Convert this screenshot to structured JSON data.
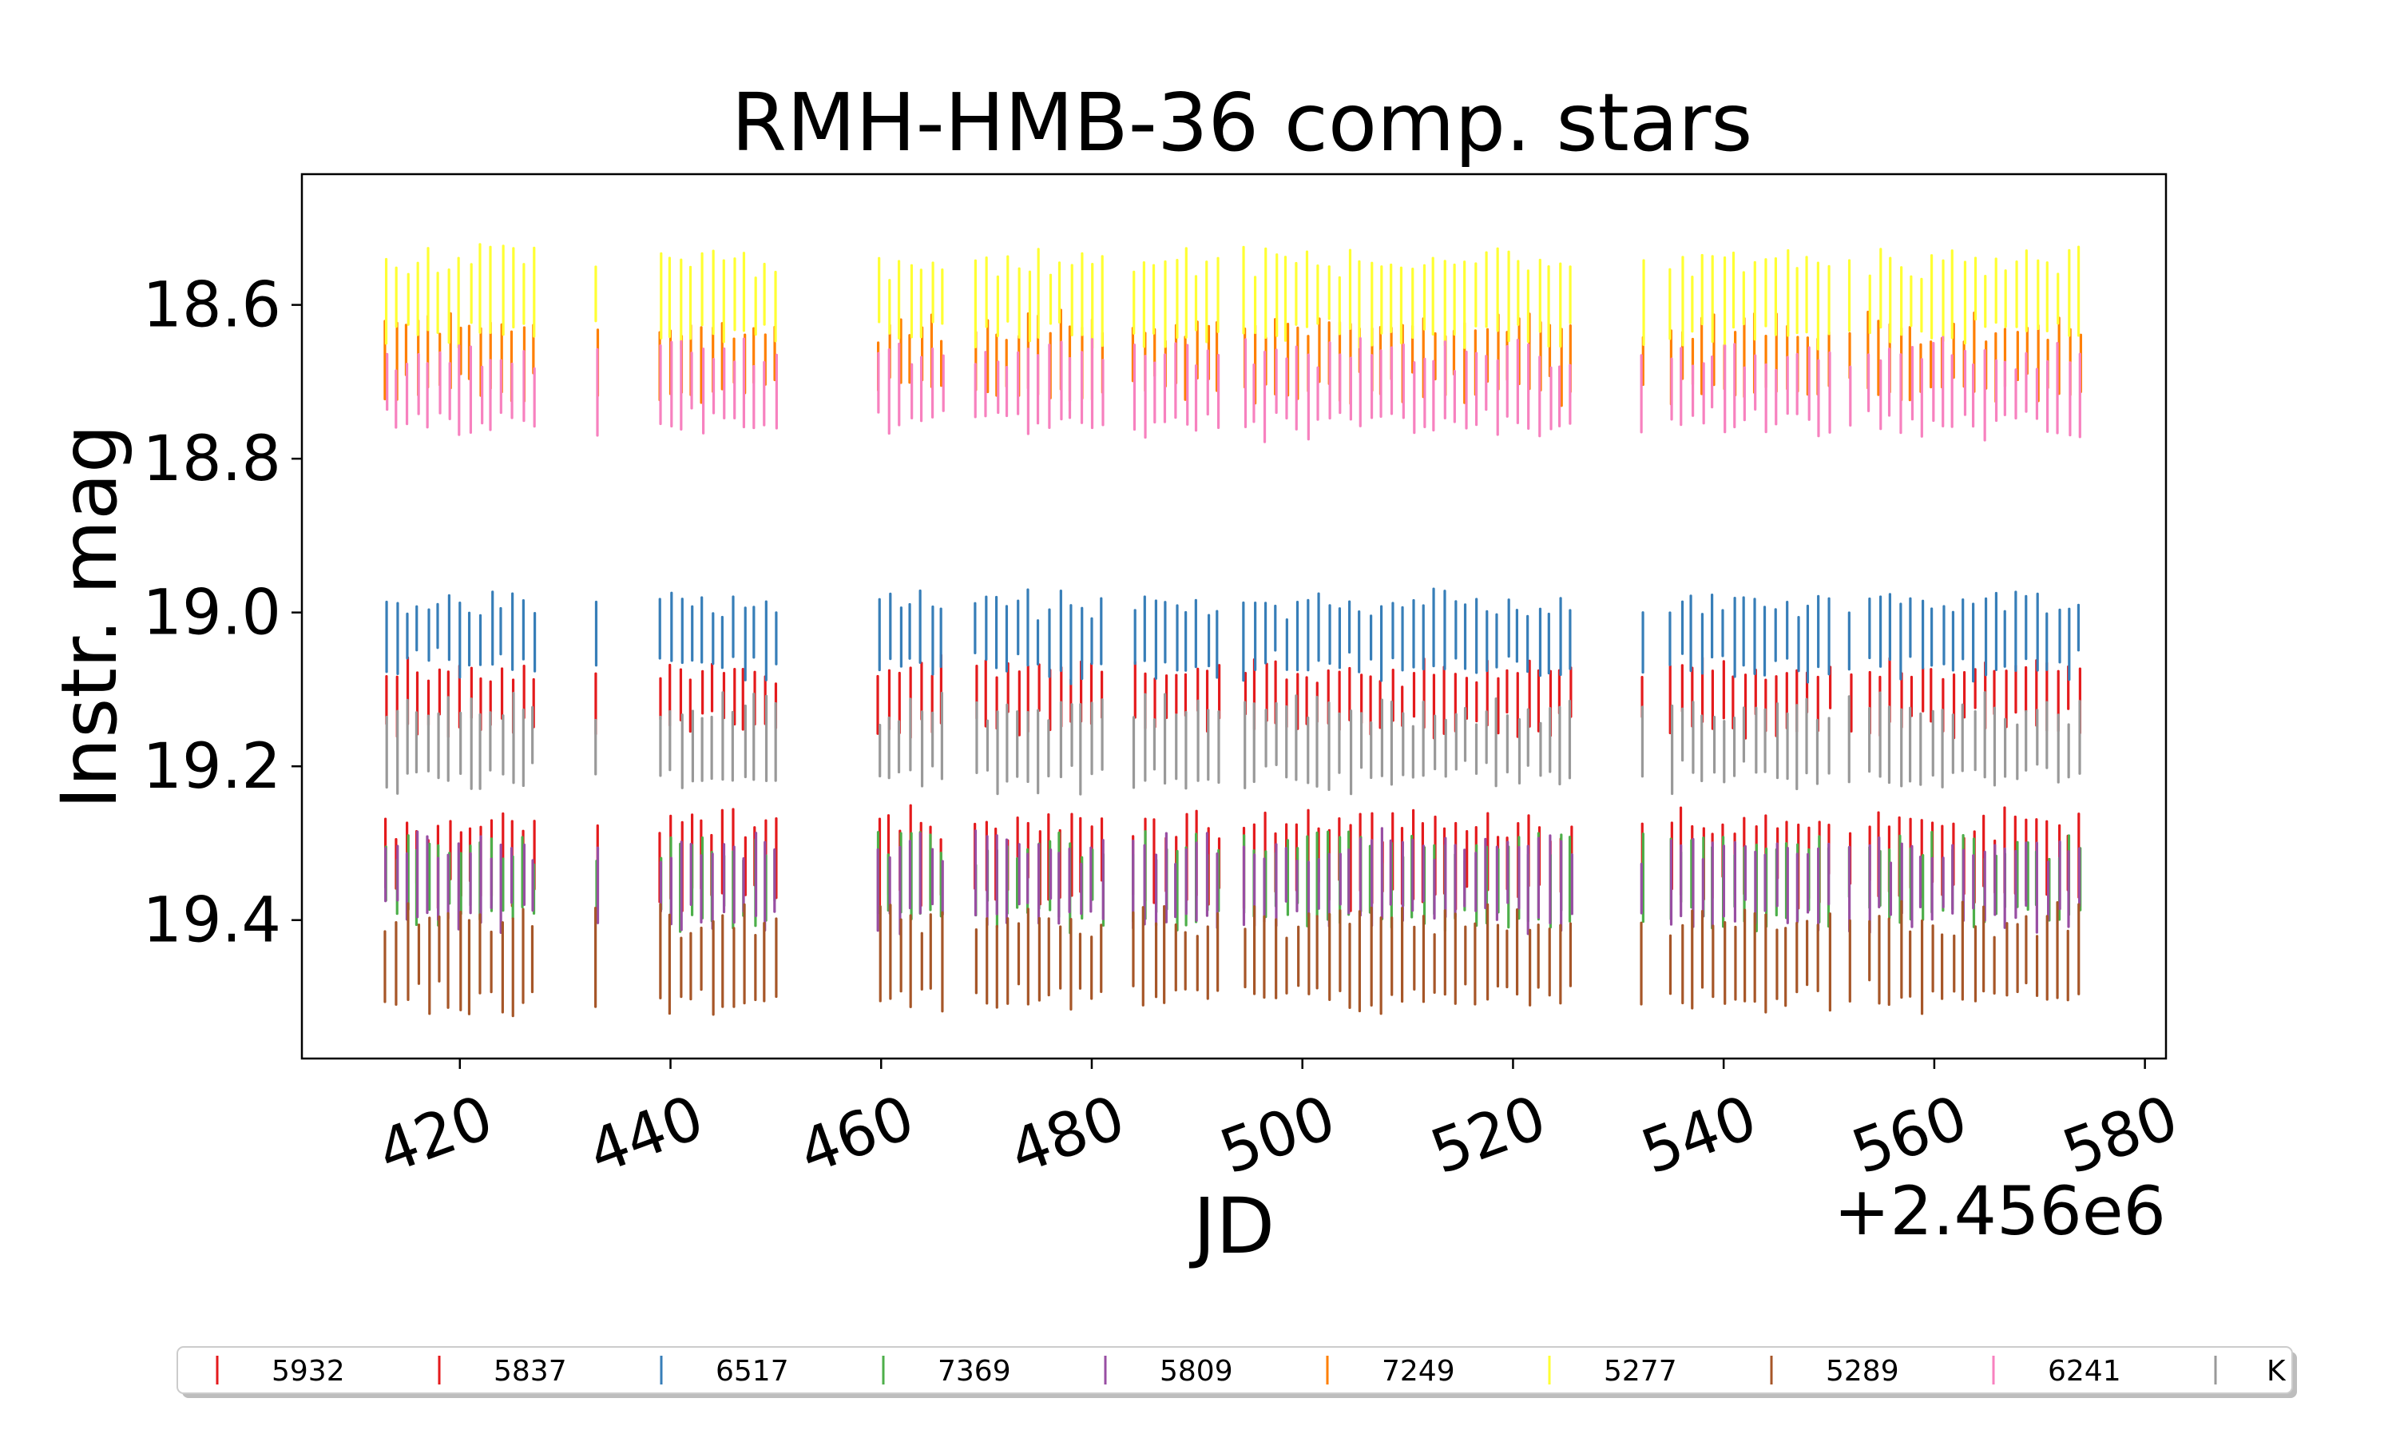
{
  "chart_data": {
    "type": "scatter",
    "title": "RMH-HMB-36 comp. stars",
    "xlabel": "JD",
    "ylabel": "Instr. mag",
    "x_offset_label": "+2.456e6",
    "xlim": [
      405,
      582
    ],
    "ylim": [
      19.58,
      18.43
    ],
    "y_inverted": true,
    "xticks": [
      420,
      440,
      460,
      480,
      500,
      520,
      540,
      560,
      580
    ],
    "xtick_labels": [
      "420",
      "440",
      "460",
      "480",
      "500",
      "520",
      "540",
      "560",
      "580"
    ],
    "xtick_rotation_deg": -20,
    "yticks": [
      18.6,
      18.8,
      19.0,
      19.2,
      19.4
    ],
    "ytick_labels": [
      "18.6",
      "18.8",
      "19.0",
      "19.2",
      "19.4"
    ],
    "grid": false,
    "legend_position": "bottom",
    "observation_nights": [
      413.0,
      414.0,
      415.0,
      416.0,
      417.0,
      418.0,
      419.0,
      420.0,
      421.0,
      422.0,
      423.0,
      424.0,
      425.0,
      426.0,
      427.0,
      433.0,
      439.0,
      440.0,
      441.0,
      442.0,
      443.0,
      444.0,
      445.0,
      446.0,
      447.0,
      448.0,
      449.0,
      450.0,
      459.8,
      460.8,
      461.8,
      462.8,
      463.8,
      464.8,
      465.8,
      469.0,
      470.0,
      471.0,
      472.0,
      473.0,
      474.0,
      475.0,
      476.0,
      477.0,
      478.0,
      479.0,
      480.0,
      481.0,
      484.0,
      485.0,
      486.0,
      487.0,
      488.0,
      489.0,
      490.0,
      491.0,
      492.0,
      494.5,
      495.5,
      496.5,
      497.5,
      498.5,
      499.5,
      500.5,
      501.5,
      502.5,
      503.5,
      504.5,
      505.5,
      506.5,
      507.5,
      508.5,
      509.5,
      510.5,
      511.5,
      512.5,
      513.5,
      514.5,
      515.5,
      516.5,
      517.5,
      518.5,
      519.5,
      520.5,
      521.5,
      522.5,
      523.5,
      524.5,
      525.5,
      532.3,
      535.0,
      536.0,
      537.0,
      538.0,
      539.0,
      540.0,
      541.0,
      542.0,
      543.0,
      544.0,
      545.0,
      546.0,
      547.0,
      548.0,
      549.0,
      550.0,
      552.0,
      553.8,
      554.8,
      555.8,
      556.8,
      557.8,
      558.8,
      559.8,
      560.8,
      561.8,
      562.8,
      563.8,
      564.8,
      565.8,
      566.8,
      567.8,
      568.8,
      569.8,
      570.8,
      571.8,
      572.8,
      573.8
    ],
    "series": [
      {
        "name": "5932",
        "color": "#e41a1c",
        "mag_center": 19.11,
        "mag_spread": 0.07
      },
      {
        "name": "5837",
        "color": "#e41a1c",
        "mag_center": 19.32,
        "mag_spread": 0.09
      },
      {
        "name": "6517",
        "color": "#377eb8",
        "mag_center": 19.03,
        "mag_spread": 0.08
      },
      {
        "name": "7369",
        "color": "#4daf4a",
        "mag_center": 19.35,
        "mag_spread": 0.09
      },
      {
        "name": "5809",
        "color": "#984ea3",
        "mag_center": 19.35,
        "mag_spread": 0.09
      },
      {
        "name": "7249",
        "color": "#ff7f00",
        "mag_center": 18.67,
        "mag_spread": 0.08
      },
      {
        "name": "5277",
        "color": "#ffff33",
        "mag_center": 18.59,
        "mag_spread": 0.09
      },
      {
        "name": "5289",
        "color": "#a65628",
        "mag_center": 19.45,
        "mag_spread": 0.1
      },
      {
        "name": "6241",
        "color": "#f781bf",
        "mag_center": 18.71,
        "mag_spread": 0.09
      },
      {
        "name": "K",
        "color": "#999999",
        "mag_center": 19.17,
        "mag_spread": 0.09
      }
    ]
  }
}
